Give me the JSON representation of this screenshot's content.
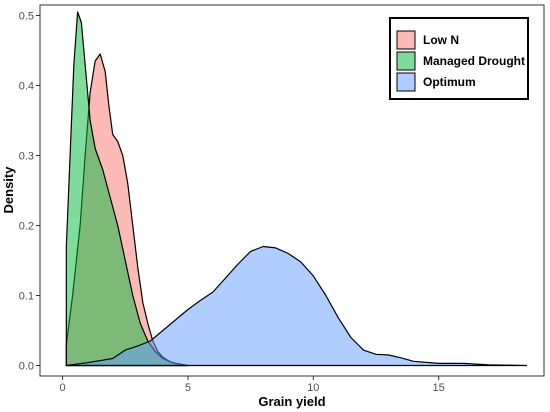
{
  "chart_data": {
    "type": "area",
    "xlabel": "Grain yield",
    "ylabel": "Density",
    "xlim": [
      -0.9,
      19.2
    ],
    "ylim": [
      -0.015,
      0.515
    ],
    "x_ticks": [
      0,
      5,
      10,
      15
    ],
    "y_ticks": [
      0.0,
      0.1,
      0.2,
      0.3,
      0.4,
      0.5
    ],
    "y_tick_labels": [
      "0.0",
      "0.1",
      "0.2",
      "0.3",
      "0.4",
      "0.5"
    ],
    "grid": false,
    "legend_position": "top-right",
    "series": [
      {
        "name": "Low N",
        "color": "#F8766D",
        "points": [
          [
            0.15,
            0.03
          ],
          [
            0.4,
            0.1
          ],
          [
            0.7,
            0.2
          ],
          [
            0.9,
            0.3
          ],
          [
            1.1,
            0.39
          ],
          [
            1.3,
            0.435
          ],
          [
            1.5,
            0.445
          ],
          [
            1.7,
            0.42
          ],
          [
            1.85,
            0.37
          ],
          [
            2.0,
            0.33
          ],
          [
            2.2,
            0.32
          ],
          [
            2.4,
            0.3
          ],
          [
            2.6,
            0.26
          ],
          [
            2.8,
            0.2
          ],
          [
            3.0,
            0.14
          ],
          [
            3.2,
            0.09
          ],
          [
            3.4,
            0.06
          ],
          [
            3.6,
            0.035
          ],
          [
            3.8,
            0.02
          ],
          [
            4.0,
            0.012
          ],
          [
            4.3,
            0.005
          ],
          [
            4.6,
            0.002
          ],
          [
            5.0,
            0.0
          ]
        ]
      },
      {
        "name": "Managed Drought",
        "color": "#00BA38",
        "points": [
          [
            0.15,
            0.17
          ],
          [
            0.3,
            0.3
          ],
          [
            0.45,
            0.43
          ],
          [
            0.6,
            0.505
          ],
          [
            0.75,
            0.49
          ],
          [
            0.9,
            0.43
          ],
          [
            1.1,
            0.35
          ],
          [
            1.3,
            0.31
          ],
          [
            1.6,
            0.28
          ],
          [
            1.9,
            0.24
          ],
          [
            2.2,
            0.2
          ],
          [
            2.5,
            0.15
          ],
          [
            2.8,
            0.1
          ],
          [
            3.1,
            0.06
          ],
          [
            3.4,
            0.035
          ],
          [
            3.7,
            0.02
          ],
          [
            4.0,
            0.01
          ],
          [
            4.4,
            0.004
          ],
          [
            5.0,
            0.0
          ]
        ]
      },
      {
        "name": "Optimum",
        "color": "#619CFF",
        "points": [
          [
            0.15,
            0.0
          ],
          [
            1.0,
            0.004
          ],
          [
            2.0,
            0.01
          ],
          [
            2.5,
            0.022
          ],
          [
            3.0,
            0.028
          ],
          [
            3.5,
            0.035
          ],
          [
            4.0,
            0.05
          ],
          [
            4.5,
            0.065
          ],
          [
            5.0,
            0.08
          ],
          [
            5.5,
            0.093
          ],
          [
            6.0,
            0.105
          ],
          [
            6.5,
            0.125
          ],
          [
            7.0,
            0.145
          ],
          [
            7.5,
            0.163
          ],
          [
            8.0,
            0.17
          ],
          [
            8.5,
            0.168
          ],
          [
            9.0,
            0.16
          ],
          [
            9.5,
            0.148
          ],
          [
            10.0,
            0.128
          ],
          [
            10.5,
            0.1
          ],
          [
            11.0,
            0.068
          ],
          [
            11.5,
            0.04
          ],
          [
            12.0,
            0.022
          ],
          [
            12.5,
            0.016
          ],
          [
            13.0,
            0.015
          ],
          [
            13.5,
            0.011
          ],
          [
            14.0,
            0.006
          ],
          [
            15.0,
            0.003
          ],
          [
            16.0,
            0.003
          ],
          [
            17.0,
            0.001
          ],
          [
            18.5,
            0.0
          ]
        ]
      }
    ]
  }
}
